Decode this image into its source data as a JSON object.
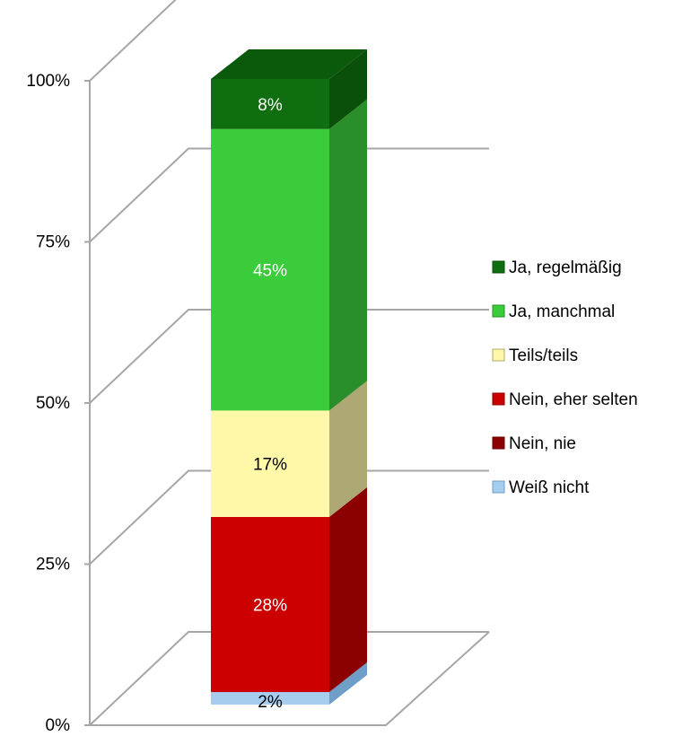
{
  "chart_data": {
    "type": "bar",
    "stacked": true,
    "three_d": true,
    "orientation": "vertical",
    "yticks": [
      "0%",
      "25%",
      "50%",
      "75%",
      "100%"
    ],
    "ylim": [
      0,
      100
    ],
    "grid": true,
    "legend_position": "right",
    "series": [
      {
        "name": "Weiß nicht",
        "value": 2,
        "label": "2%",
        "color": "#a6cdee",
        "side": "#6f9fc8",
        "top": "#c8e0f5",
        "label_color": "#000000"
      },
      {
        "name": "Nein, nie",
        "value": 0,
        "label": "",
        "color": "#8b0000",
        "side": "#6a0000",
        "top": "#a00000",
        "label_color": "#ffffff"
      },
      {
        "name": "Nein, eher selten",
        "value": 28,
        "label": "28%",
        "color": "#cc0000",
        "side": "#8b0000",
        "top": "#dd2222",
        "label_color": "#ffffff"
      },
      {
        "name": "Teils/teils",
        "value": 17,
        "label": "17%",
        "color": "#fff8a8",
        "side": "#aea874",
        "top": "#fffbc8",
        "label_color": "#000000"
      },
      {
        "name": "Ja, manchmal",
        "value": 45,
        "label": "45%",
        "color": "#3acc3a",
        "side": "#2a8e2a",
        "top": "#5ad85a",
        "label_color": "#ffffff"
      },
      {
        "name": "Ja, regelmäßig",
        "value": 8,
        "label": "8%",
        "color": "#0f6e0f",
        "side": "#0a4f0a",
        "top": "#0b5a0b",
        "label_color": "#ffffff"
      }
    ],
    "legend_order": [
      "Ja, regelmäßig",
      "Ja, manchmal",
      "Teils/teils",
      "Nein, eher selten",
      "Nein, nie",
      "Weiß nicht"
    ]
  }
}
